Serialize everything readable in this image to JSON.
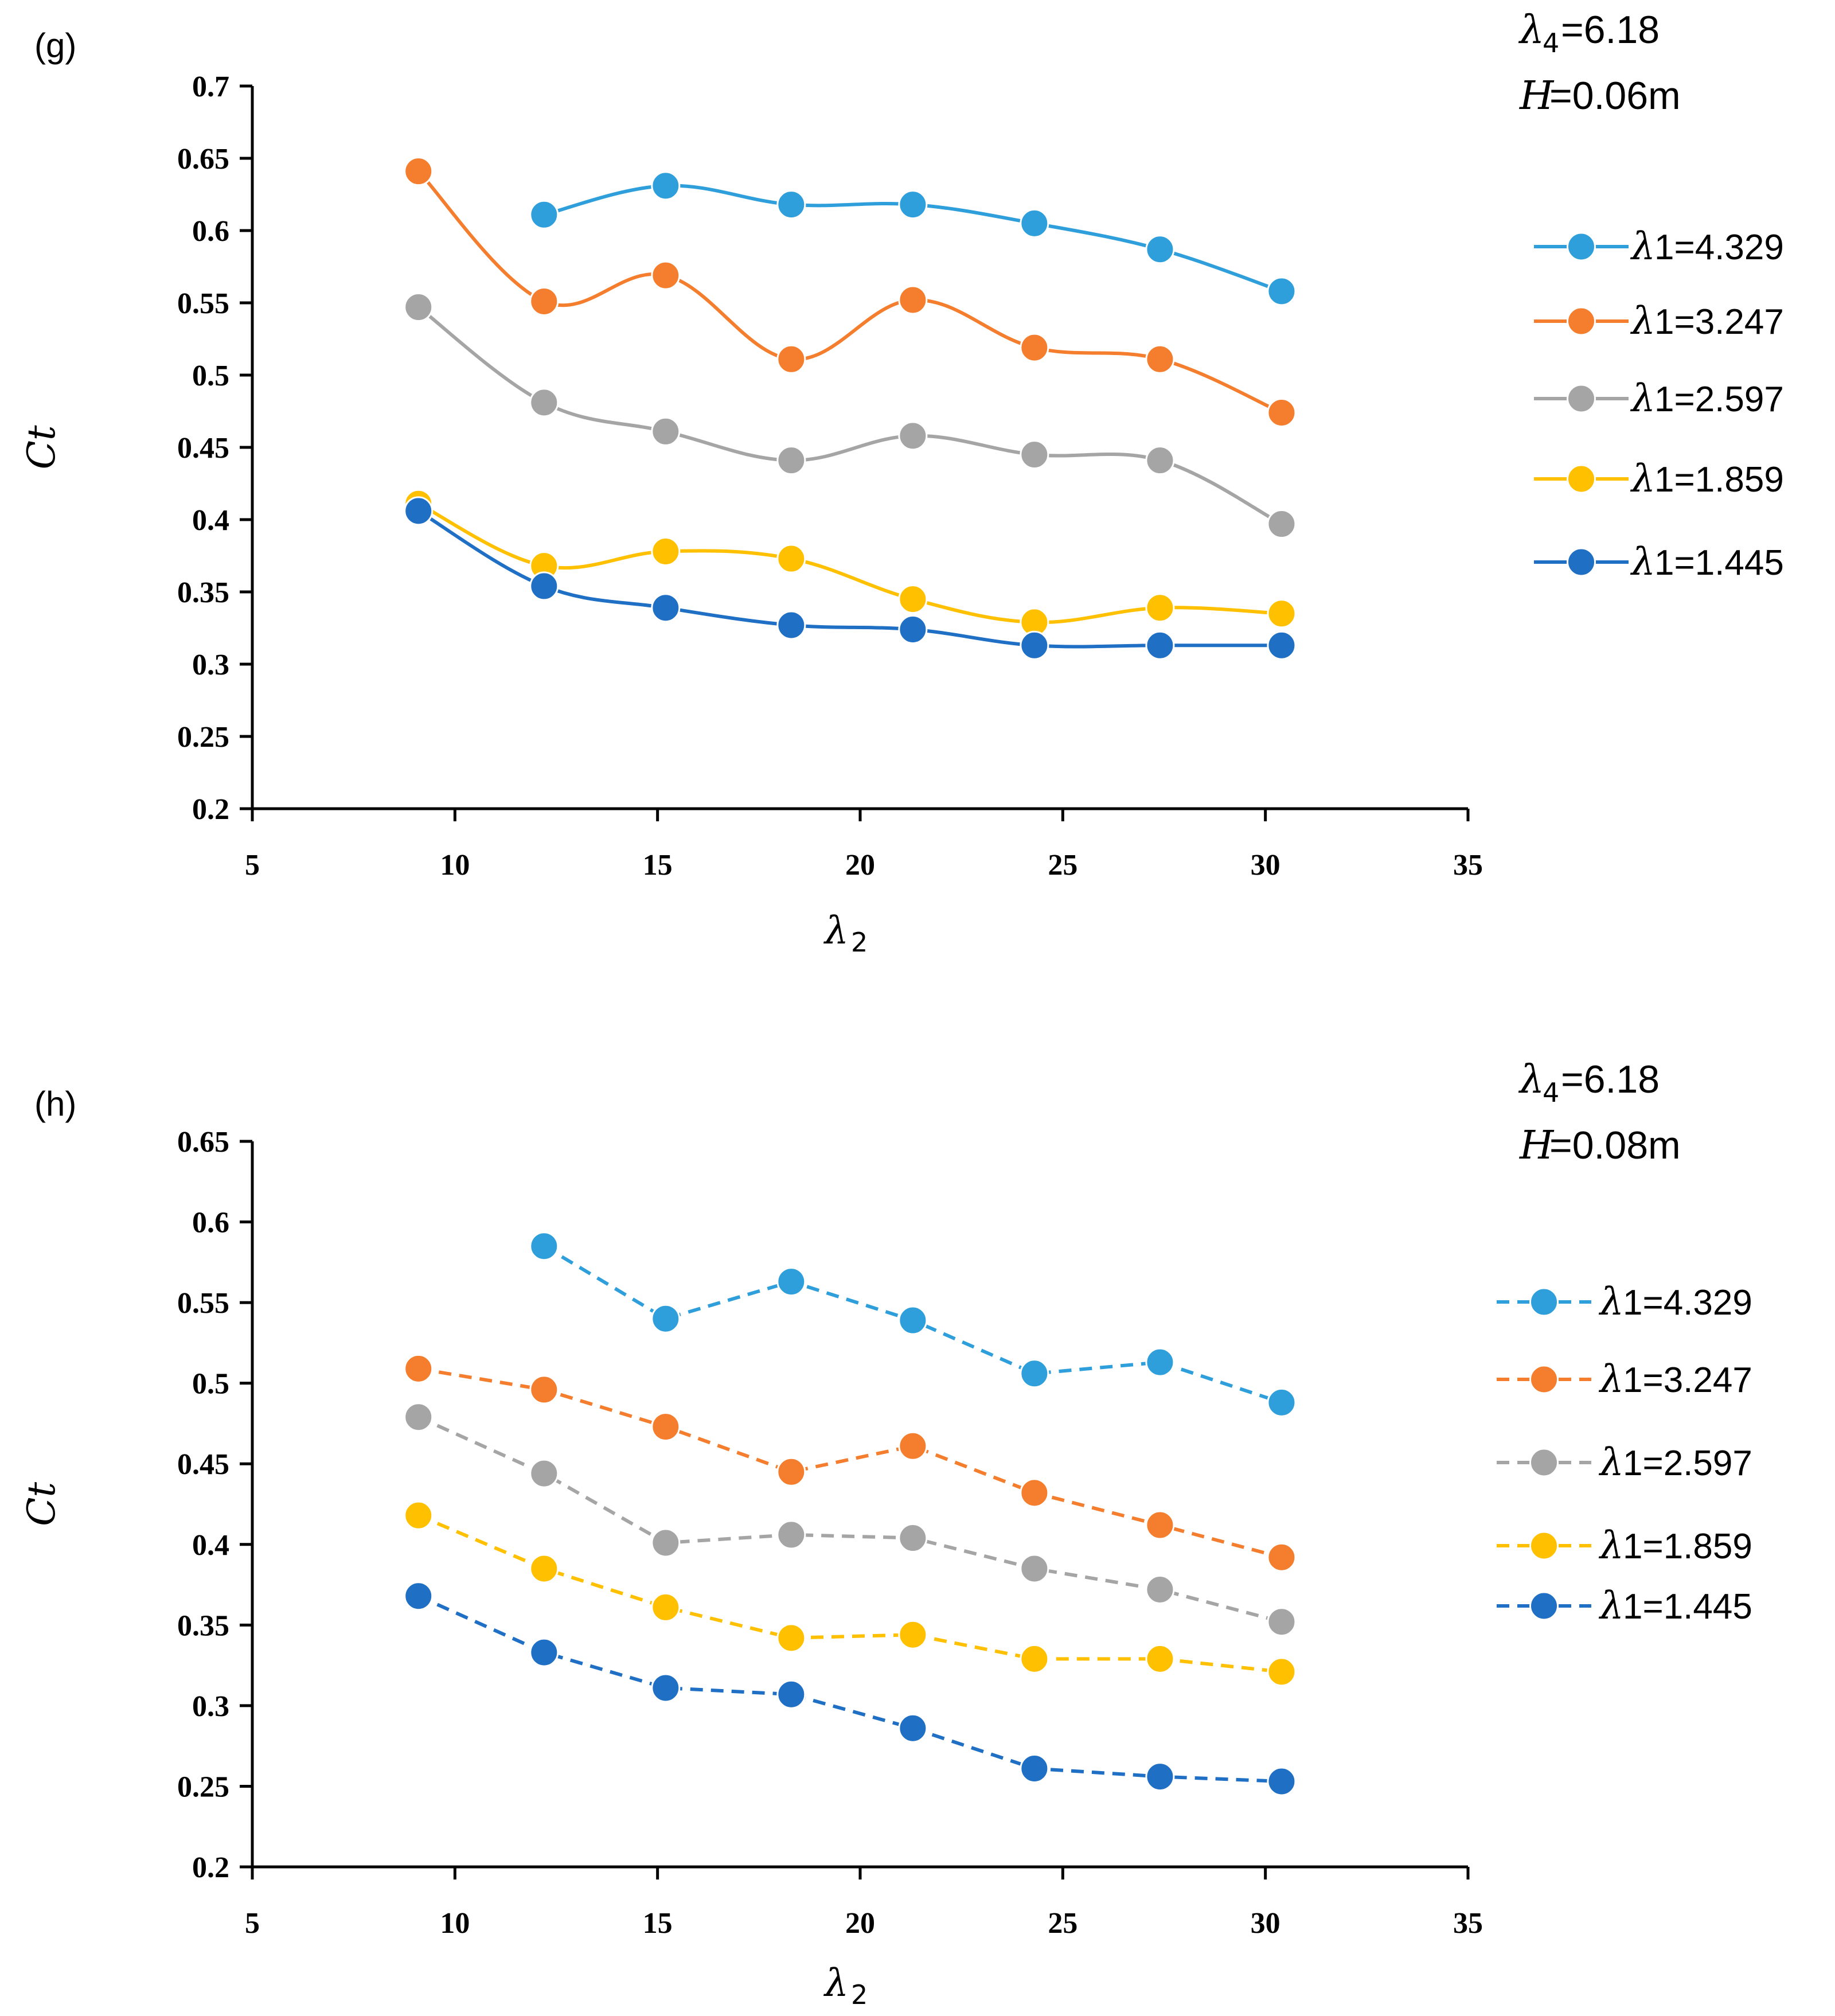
{
  "figure": {
    "panels": [
      "g",
      "h"
    ]
  },
  "chart_data": [
    {
      "type": "line",
      "panel_label": "(g)",
      "line_style": "solid",
      "params": {
        "lambda4_label": "λ",
        "lambda4_sub": "4",
        "lambda4_value": "=6.18",
        "H_label": "H",
        "H_value": "=0.06m"
      },
      "xlabel": "λ",
      "xlabel_sub": "2",
      "ylabel": "Ct",
      "xlim": [
        5,
        35
      ],
      "ylim": [
        0.2,
        0.7
      ],
      "xticks": [
        5,
        10,
        15,
        20,
        25,
        30,
        35
      ],
      "xtick_labels": [
        "5",
        "10",
        "15",
        "20",
        "25",
        "30",
        "35"
      ],
      "yticks": [
        0.2,
        0.25,
        0.3,
        0.35,
        0.4,
        0.45,
        0.5,
        0.55,
        0.6,
        0.65,
        0.7
      ],
      "ytick_labels": [
        "0.2",
        "0.25",
        "0.3",
        "0.35",
        "0.4",
        "0.45",
        "0.5",
        "0.55",
        "0.6",
        "0.65",
        "0.7"
      ],
      "legend_location": "right",
      "series": [
        {
          "name": "λ1=4.329",
          "legend_sym": "λ",
          "legend_rest": "1=4.329",
          "color": "#2E9FDB",
          "x": [
            12.2,
            15.2,
            18.3,
            21.3,
            24.3,
            27.4,
            30.4
          ],
          "y": [
            0.611,
            0.631,
            0.618,
            0.618,
            0.605,
            0.587,
            0.558
          ]
        },
        {
          "name": "λ1=3.247",
          "legend_sym": "λ",
          "legend_rest": "1=3.247",
          "color": "#F47E2D",
          "x": [
            9.1,
            12.2,
            15.2,
            18.3,
            21.3,
            24.3,
            27.4,
            30.4
          ],
          "y": [
            0.641,
            0.551,
            0.569,
            0.511,
            0.552,
            0.519,
            0.511,
            0.474
          ]
        },
        {
          "name": "λ1=2.597",
          "legend_sym": "λ",
          "legend_rest": "1=2.597",
          "color": "#A5A5A5",
          "x": [
            9.1,
            12.2,
            15.2,
            18.3,
            21.3,
            24.3,
            27.4,
            30.4
          ],
          "y": [
            0.547,
            0.481,
            0.461,
            0.441,
            0.458,
            0.445,
            0.441,
            0.397
          ]
        },
        {
          "name": "λ1=1.859",
          "legend_sym": "λ",
          "legend_rest": "1=1.859",
          "color": "#FFC000",
          "x": [
            9.1,
            12.2,
            15.2,
            18.3,
            21.3,
            24.3,
            27.4,
            30.4
          ],
          "y": [
            0.411,
            0.368,
            0.378,
            0.373,
            0.345,
            0.329,
            0.339,
            0.335
          ]
        },
        {
          "name": "λ1=1.445",
          "legend_sym": "λ",
          "legend_rest": "1=1.445",
          "color": "#1F6FC5",
          "x": [
            9.1,
            12.2,
            15.2,
            18.3,
            21.3,
            24.3,
            27.4,
            30.4
          ],
          "y": [
            0.406,
            0.354,
            0.339,
            0.327,
            0.324,
            0.313,
            0.313,
            0.313
          ]
        }
      ]
    },
    {
      "type": "line",
      "panel_label": "(h)",
      "line_style": "dashed",
      "params": {
        "lambda4_label": "λ",
        "lambda4_sub": "4",
        "lambda4_value": "=6.18",
        "H_label": "H",
        "H_value": "=0.08m"
      },
      "xlabel": "λ",
      "xlabel_sub": "2",
      "ylabel": "Ct",
      "xlim": [
        5,
        35
      ],
      "ylim": [
        0.2,
        0.65
      ],
      "xticks": [
        5,
        10,
        15,
        20,
        25,
        30,
        35
      ],
      "xtick_labels": [
        "5",
        "10",
        "15",
        "20",
        "25",
        "30",
        "35"
      ],
      "yticks": [
        0.2,
        0.25,
        0.3,
        0.35,
        0.4,
        0.45,
        0.5,
        0.55,
        0.6,
        0.65
      ],
      "ytick_labels": [
        "0.2",
        "0.25",
        "0.3",
        "0.35",
        "0.4",
        "0.45",
        "0.5",
        "0.55",
        "0.6",
        "0.65"
      ],
      "legend_location": "right",
      "series": [
        {
          "name": "λ1=4.329",
          "legend_sym": "λ",
          "legend_rest": "1=4.329",
          "color": "#2E9FDB",
          "x": [
            12.2,
            15.2,
            18.3,
            21.3,
            24.3,
            27.4,
            30.4
          ],
          "y": [
            0.585,
            0.54,
            0.563,
            0.539,
            0.506,
            0.513,
            0.488
          ]
        },
        {
          "name": "λ1=3.247",
          "legend_sym": "λ",
          "legend_rest": "1=3.247",
          "color": "#F47E2D",
          "x": [
            9.1,
            12.2,
            15.2,
            18.3,
            21.3,
            24.3,
            27.4,
            30.4
          ],
          "y": [
            0.509,
            0.496,
            0.473,
            0.445,
            0.461,
            0.432,
            0.412,
            0.392
          ]
        },
        {
          "name": "λ1=2.597",
          "legend_sym": "λ",
          "legend_rest": "1=2.597",
          "color": "#A5A5A5",
          "x": [
            9.1,
            12.2,
            15.2,
            18.3,
            21.3,
            24.3,
            27.4,
            30.4
          ],
          "y": [
            0.479,
            0.444,
            0.401,
            0.406,
            0.404,
            0.385,
            0.372,
            0.352
          ]
        },
        {
          "name": "λ1=1.859",
          "legend_sym": "λ",
          "legend_rest": "1=1.859",
          "color": "#FFC000",
          "x": [
            9.1,
            12.2,
            15.2,
            18.3,
            21.3,
            24.3,
            27.4,
            30.4
          ],
          "y": [
            0.418,
            0.385,
            0.361,
            0.342,
            0.344,
            0.329,
            0.329,
            0.321
          ]
        },
        {
          "name": "λ1=1.445",
          "legend_sym": "λ",
          "legend_rest": "1=1.445",
          "color": "#1F6FC5",
          "x": [
            9.1,
            12.2,
            15.2,
            18.3,
            21.3,
            24.3,
            27.4,
            30.4
          ],
          "y": [
            0.368,
            0.333,
            0.311,
            0.307,
            0.286,
            0.261,
            0.256,
            0.253
          ]
        }
      ]
    }
  ]
}
